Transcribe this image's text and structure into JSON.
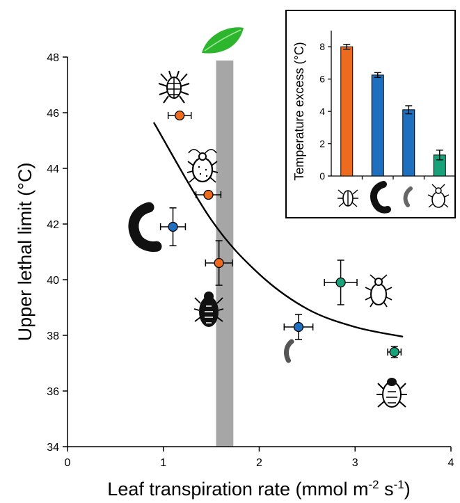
{
  "chart_data": [
    {
      "type": "scatter",
      "title": "",
      "xlabel_main": "Leaf transpiration rate (mmol m",
      "xlabel_sup1": "-2",
      "xlabel_mid": " s",
      "xlabel_sup2": "-1",
      "xlabel_end": ")",
      "ylabel": "Upper lethal limit (°C)",
      "xlim": [
        0,
        4
      ],
      "ylim": [
        34,
        48
      ],
      "xticks": [
        "0",
        "1",
        "2",
        "3",
        "4"
      ],
      "yticks": [
        "34",
        "36",
        "38",
        "40",
        "42",
        "44",
        "46",
        "48"
      ],
      "shaded_band_x": [
        1.55,
        1.73
      ],
      "fit_curve": {
        "type": "exponential",
        "points": [
          [
            0.9,
            45.65
          ],
          [
            1.5,
            42.15
          ],
          [
            2.0,
            40.2
          ],
          [
            2.5,
            38.95
          ],
          [
            3.0,
            38.3
          ],
          [
            3.5,
            37.95
          ]
        ]
      },
      "points": [
        {
          "x": 1.17,
          "y": 45.9,
          "xerr": 0.12,
          "yerr": 0,
          "color": "#ED6B1E"
        },
        {
          "x": 1.47,
          "y": 43.05,
          "xerr": 0.13,
          "yerr": 0,
          "color": "#ED6B1E"
        },
        {
          "x": 1.1,
          "y": 41.9,
          "xerr": 0.13,
          "yerr": 0.68,
          "color": "#1F6FBF"
        },
        {
          "x": 1.58,
          "y": 40.6,
          "xerr": 0.14,
          "yerr": 0.8,
          "color": "#ED6B1E"
        },
        {
          "x": 2.85,
          "y": 39.9,
          "xerr": 0.17,
          "yerr": 0.8,
          "color": "#17A27A"
        },
        {
          "x": 2.41,
          "y": 38.3,
          "xerr": 0.15,
          "yerr": 0.45,
          "color": "#1F6FBF"
        },
        {
          "x": 3.41,
          "y": 37.4,
          "xerr": 0.07,
          "yerr": 0.2,
          "color": "#17A27A"
        }
      ]
    },
    {
      "type": "bar",
      "title": "",
      "ylabel": "Temperature excess (°C)",
      "ylim": [
        0,
        9
      ],
      "yticks": [
        "0",
        "2",
        "4",
        "6",
        "8"
      ],
      "categories": [
        "mite",
        "caterpillar",
        "larva",
        "aphid"
      ],
      "values": [
        8.0,
        6.25,
        4.1,
        1.3
      ],
      "errors": [
        0.15,
        0.15,
        0.25,
        0.3
      ],
      "colors": [
        "#ED6B1E",
        "#1F6FBF",
        "#1F6FBF",
        "#17A27A"
      ]
    }
  ],
  "colors": {
    "orange": "#ED6B1E",
    "blue": "#1F6FBF",
    "green": "#17A27A",
    "band": "#A6A6A6",
    "leaf": "#2DB52D"
  },
  "icons": [
    "leaf-icon",
    "mite-icon",
    "aphid-icon",
    "caterpillar-icon",
    "beetle-icon",
    "larva-icon"
  ]
}
